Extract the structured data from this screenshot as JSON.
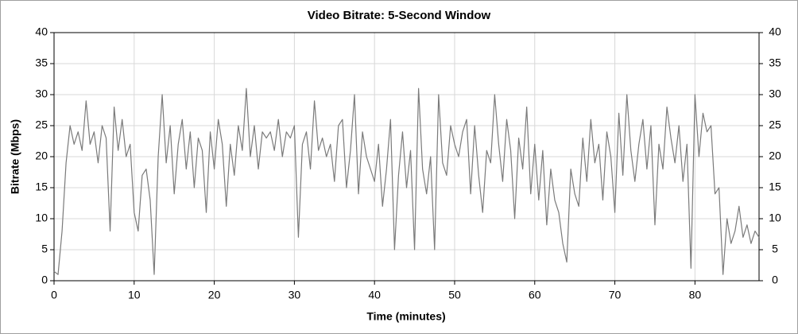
{
  "chart_data": {
    "type": "line",
    "title": "Video Bitrate: 5-Second Window",
    "x_label": "Time (minutes)",
    "y_label": "Bitrate (Mbps)",
    "color": "#7a7a7a",
    "grid": true,
    "xlim": [
      0,
      88
    ],
    "xticks": [
      0,
      10,
      20,
      30,
      40,
      50,
      60,
      70,
      80
    ],
    "ylim": [
      0,
      40
    ],
    "yticks": [
      0,
      5,
      10,
      15,
      20,
      25,
      30,
      35,
      40
    ],
    "y2lim": [
      0,
      40
    ],
    "y2ticks": [
      0,
      5,
      10,
      15,
      20,
      25,
      30,
      35,
      40
    ],
    "x": [
      0,
      0.5,
      1,
      1.5,
      2,
      2.5,
      3,
      3.5,
      4,
      4.5,
      5,
      5.5,
      6,
      6.5,
      7,
      7.5,
      8,
      8.5,
      9,
      9.5,
      10,
      10.5,
      11,
      11.5,
      12,
      12.5,
      13,
      13.5,
      14,
      14.5,
      15,
      15.5,
      16,
      16.5,
      17,
      17.5,
      18,
      18.5,
      19,
      19.5,
      20,
      20.5,
      21,
      21.5,
      22,
      22.5,
      23,
      23.5,
      24,
      24.5,
      25,
      25.5,
      26,
      26.5,
      27,
      27.5,
      28,
      28.5,
      29,
      29.5,
      30,
      30.5,
      31,
      31.5,
      32,
      32.5,
      33,
      33.5,
      34,
      34.5,
      35,
      35.5,
      36,
      36.5,
      37,
      37.5,
      38,
      38.5,
      39,
      39.5,
      40,
      40.5,
      41,
      41.5,
      42,
      42.5,
      43,
      43.5,
      44,
      44.5,
      45,
      45.5,
      46,
      46.5,
      47,
      47.5,
      48,
      48.5,
      49,
      49.5,
      50,
      50.5,
      51,
      51.5,
      52,
      52.5,
      53,
      53.5,
      54,
      54.5,
      55,
      55.5,
      56,
      56.5,
      57,
      57.5,
      58,
      58.5,
      59,
      59.5,
      60,
      60.5,
      61,
      61.5,
      62,
      62.5,
      63,
      63.5,
      64,
      64.5,
      65,
      65.5,
      66,
      66.5,
      67,
      67.5,
      68,
      68.5,
      69,
      69.5,
      70,
      70.5,
      71,
      71.5,
      72,
      72.5,
      73,
      73.5,
      74,
      74.5,
      75,
      75.5,
      76,
      76.5,
      77,
      77.5,
      78,
      78.5,
      79,
      79.5,
      80,
      80.5,
      81,
      81.5,
      82,
      82.5,
      83,
      83.5,
      84,
      84.5,
      85,
      85.5,
      86,
      86.5,
      87,
      87.5,
      88
    ],
    "values": [
      1.5,
      1,
      8,
      19,
      25,
      22,
      24,
      21,
      29,
      22,
      24,
      19,
      25,
      23,
      8,
      28,
      21,
      26,
      20,
      22,
      11,
      8,
      17,
      18,
      13,
      1,
      20,
      30,
      19,
      25,
      14,
      22,
      26,
      18,
      24,
      15,
      23,
      21,
      11,
      24,
      18,
      26,
      22,
      12,
      22,
      17,
      25,
      21,
      31,
      20,
      25,
      18,
      24,
      23,
      24,
      21,
      26,
      20,
      24,
      23,
      25,
      7,
      22,
      24,
      18,
      29,
      21,
      23,
      20,
      22,
      16,
      25,
      26,
      15,
      21,
      30,
      14,
      24,
      20,
      18,
      16,
      22,
      12,
      18,
      26,
      5,
      17,
      24,
      15,
      21,
      5,
      31,
      18,
      14,
      20,
      5,
      30,
      19,
      17,
      25,
      22,
      20,
      24,
      26,
      14,
      25,
      17,
      11,
      21,
      19,
      30,
      22,
      16,
      26,
      21,
      10,
      23,
      18,
      28,
      14,
      22,
      13,
      21,
      9,
      18,
      13,
      11,
      6,
      3,
      18,
      14,
      12,
      23,
      16,
      26,
      19,
      22,
      13,
      24,
      20,
      11,
      27,
      17,
      30,
      21,
      16,
      22,
      26,
      18,
      25,
      9,
      22,
      18,
      28,
      23,
      19,
      25,
      16,
      22,
      2,
      30,
      20,
      27,
      24,
      25,
      14,
      15,
      1,
      10,
      6,
      8,
      12,
      7,
      9,
      6,
      8,
      7
    ]
  }
}
